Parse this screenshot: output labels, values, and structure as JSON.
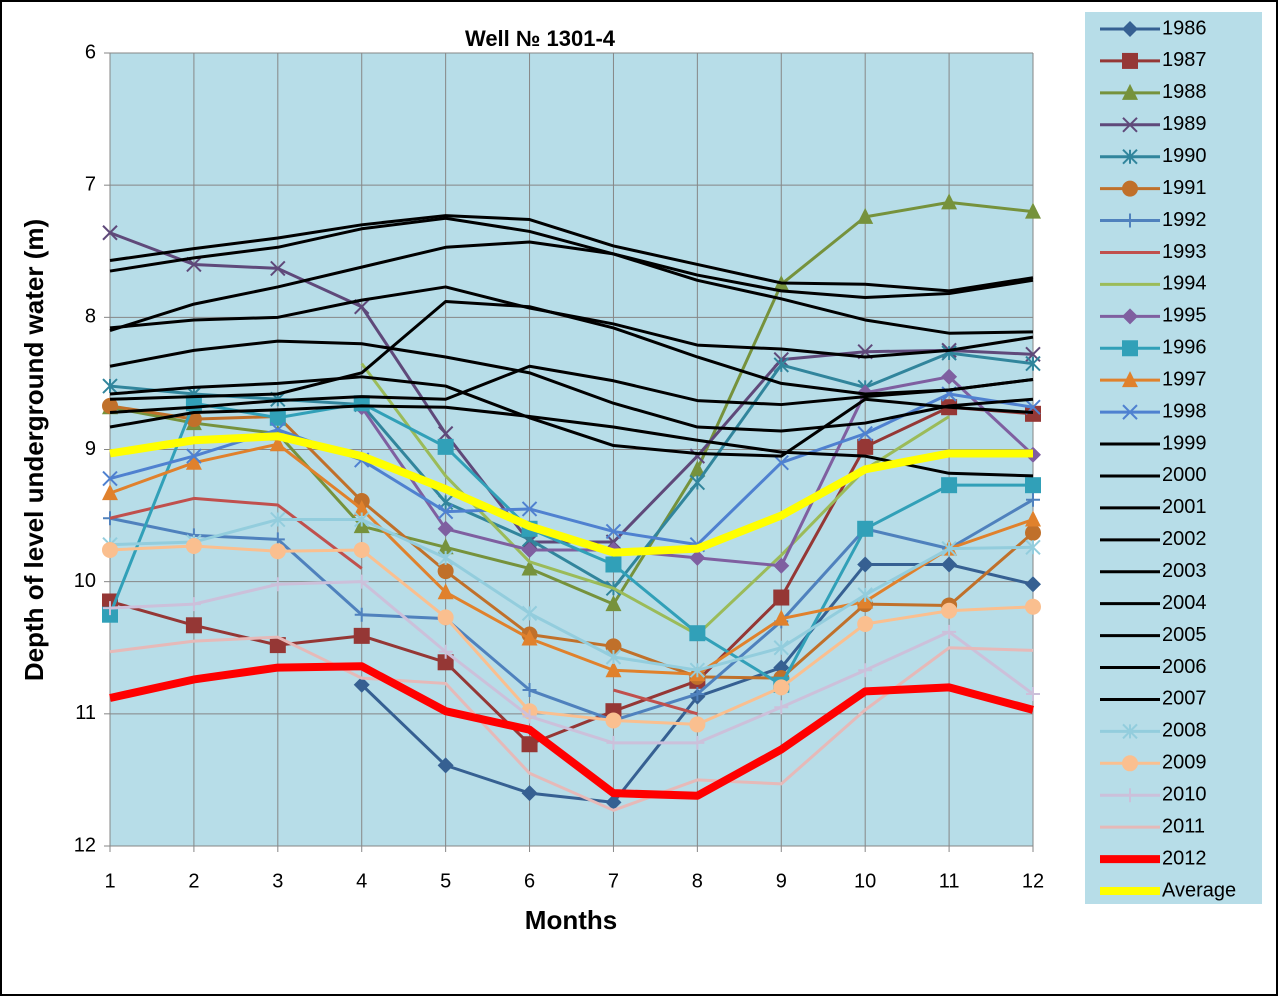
{
  "chart_data": {
    "type": "line",
    "title": "Well № 1301-4",
    "x_label": "Months",
    "y_label": "Depth  of level underground water (m)",
    "x": [
      1,
      2,
      3,
      4,
      5,
      6,
      7,
      8,
      9,
      10,
      11,
      12
    ],
    "xlim": [
      1,
      12
    ],
    "xticks": [
      1,
      2,
      3,
      4,
      5,
      6,
      7,
      8,
      9,
      10,
      11,
      12
    ],
    "ylim": [
      6,
      12
    ],
    "yticks": [
      6,
      7,
      8,
      9,
      10,
      11,
      12
    ],
    "y_inverted": true,
    "grid": true,
    "legend": "right",
    "plot_background": "#b7dde8",
    "series": [
      {
        "name": "1986",
        "color": "#366092",
        "marker": "diamond",
        "width": 3,
        "values": [
          null,
          null,
          null,
          10.78,
          11.39,
          11.6,
          11.67,
          10.87,
          10.65,
          9.87,
          9.87,
          10.02
        ]
      },
      {
        "name": "1987",
        "color": "#953735",
        "marker": "square",
        "width": 3,
        "values": [
          10.15,
          10.33,
          10.48,
          10.41,
          10.61,
          11.23,
          10.98,
          10.75,
          10.12,
          8.98,
          8.68,
          8.73
        ]
      },
      {
        "name": "1988",
        "color": "#76923c",
        "marker": "triangle",
        "width": 3,
        "values": [
          8.68,
          8.8,
          8.88,
          9.58,
          9.74,
          9.9,
          10.17,
          9.15,
          7.75,
          7.24,
          7.13,
          7.2
        ]
      },
      {
        "name": "1989",
        "color": "#5f497a",
        "marker": "x",
        "width": 3,
        "values": [
          7.36,
          7.6,
          7.63,
          7.92,
          8.88,
          9.7,
          9.7,
          9.05,
          8.32,
          8.26,
          8.25,
          8.28
        ]
      },
      {
        "name": "1990",
        "color": "#31859c",
        "marker": "asterisk",
        "width": 3,
        "values": [
          8.52,
          8.58,
          8.62,
          8.66,
          9.4,
          9.68,
          10.05,
          9.25,
          8.36,
          8.53,
          8.27,
          8.35
        ]
      },
      {
        "name": "1991",
        "color": "#c0702a",
        "marker": "circle",
        "width": 3,
        "values": [
          8.67,
          8.77,
          8.75,
          9.39,
          9.92,
          10.4,
          10.49,
          10.72,
          10.73,
          10.17,
          10.18,
          9.63
        ]
      },
      {
        "name": "1992",
        "color": "#4f81bd",
        "marker": "plus",
        "width": 3,
        "values": [
          9.52,
          9.65,
          9.68,
          10.25,
          10.28,
          10.82,
          11.05,
          10.85,
          10.3,
          9.6,
          9.75,
          9.38
        ]
      },
      {
        "name": "1993",
        "color": "#c0504d",
        "marker": "none",
        "width": 3,
        "values": [
          9.52,
          9.37,
          9.42,
          9.9,
          null,
          null,
          10.82,
          11.0,
          null,
          null,
          null,
          null
        ]
      },
      {
        "name": "1994",
        "color": "#9bbb59",
        "marker": "none",
        "width": 3,
        "values": [
          null,
          null,
          null,
          8.35,
          9.2,
          9.85,
          10.05,
          10.4,
          9.8,
          9.15,
          8.75,
          null
        ]
      },
      {
        "name": "1995",
        "color": "#7f5fa0",
        "marker": "diamond",
        "width": 3,
        "values": [
          null,
          null,
          null,
          8.68,
          9.6,
          9.76,
          9.76,
          9.82,
          9.88,
          8.57,
          8.45,
          9.04
        ]
      },
      {
        "name": "1996",
        "color": "#31a0b8",
        "marker": "square",
        "width": 3,
        "values": [
          10.25,
          8.65,
          8.76,
          8.65,
          8.98,
          9.6,
          9.87,
          10.39,
          10.78,
          9.6,
          9.27,
          9.27
        ]
      },
      {
        "name": "1997",
        "color": "#e0812c",
        "marker": "triangle",
        "width": 3,
        "values": [
          9.33,
          9.1,
          8.96,
          9.45,
          10.08,
          10.43,
          10.67,
          10.7,
          10.28,
          10.15,
          9.75,
          9.53
        ]
      },
      {
        "name": "1998",
        "color": "#4f81d0",
        "marker": "x",
        "width": 3,
        "values": [
          9.22,
          9.05,
          8.85,
          9.08,
          9.47,
          9.45,
          9.62,
          9.72,
          9.1,
          8.88,
          8.58,
          8.68
        ]
      },
      {
        "name": "1999",
        "color": "#000000",
        "marker": "none",
        "width": 3,
        "values": [
          7.57,
          7.48,
          7.4,
          7.3,
          7.23,
          7.26,
          7.46,
          7.6,
          7.74,
          7.75,
          7.8,
          7.7
        ]
      },
      {
        "name": "2000",
        "color": "#000000",
        "marker": "none",
        "width": 3,
        "values": [
          7.65,
          7.55,
          7.47,
          7.33,
          7.25,
          7.35,
          7.52,
          7.68,
          7.8,
          7.85,
          7.82,
          7.72
        ]
      },
      {
        "name": "2001",
        "color": "#000000",
        "marker": "none",
        "width": 3,
        "values": [
          8.1,
          7.9,
          7.77,
          7.62,
          7.47,
          7.43,
          7.52,
          7.72,
          7.86,
          8.02,
          8.12,
          8.11
        ]
      },
      {
        "name": "2002",
        "color": "#000000",
        "marker": "none",
        "width": 3,
        "values": [
          8.08,
          8.02,
          8.0,
          7.87,
          7.77,
          7.93,
          8.05,
          8.21,
          8.24,
          8.3,
          8.25,
          8.15
        ]
      },
      {
        "name": "2003",
        "color": "#000000",
        "marker": "none",
        "width": 3,
        "values": [
          8.37,
          8.25,
          8.18,
          8.2,
          8.3,
          8.42,
          8.65,
          8.83,
          8.86,
          8.8,
          8.67,
          8.62
        ]
      },
      {
        "name": "2004",
        "color": "#000000",
        "marker": "none",
        "width": 3,
        "values": [
          8.58,
          8.53,
          8.5,
          8.45,
          8.52,
          8.76,
          8.97,
          9.03,
          9.05,
          8.62,
          8.68,
          8.72
        ]
      },
      {
        "name": "2005",
        "color": "#000000",
        "marker": "none",
        "width": 3,
        "values": [
          8.62,
          8.6,
          8.58,
          8.42,
          7.88,
          7.92,
          8.08,
          8.3,
          8.5,
          8.58,
          8.55,
          8.47
        ]
      },
      {
        "name": "2006",
        "color": "#000000",
        "marker": "none",
        "width": 3,
        "values": [
          8.72,
          8.68,
          8.63,
          8.6,
          8.62,
          8.37,
          8.48,
          8.63,
          8.66,
          8.6,
          8.55,
          8.47
        ]
      },
      {
        "name": "2007",
        "color": "#000000",
        "marker": "none",
        "width": 3,
        "values": [
          8.83,
          8.72,
          8.7,
          8.67,
          8.68,
          8.75,
          8.83,
          8.93,
          9.02,
          9.05,
          9.18,
          9.2
        ]
      },
      {
        "name": "2008",
        "color": "#93cddd",
        "marker": "asterisk",
        "width": 3,
        "values": [
          9.72,
          9.7,
          9.53,
          9.53,
          9.82,
          10.24,
          10.57,
          10.67,
          10.5,
          10.1,
          9.75,
          9.74
        ]
      },
      {
        "name": "2009",
        "color": "#fabf8f",
        "marker": "circle",
        "width": 3,
        "values": [
          9.76,
          9.73,
          9.77,
          9.76,
          10.27,
          10.98,
          11.05,
          11.08,
          10.8,
          10.32,
          10.22,
          10.19
        ]
      },
      {
        "name": "2010",
        "color": "#ccc0da",
        "marker": "plus",
        "width": 3,
        "values": [
          10.2,
          10.17,
          10.02,
          10.0,
          10.53,
          11.02,
          11.22,
          11.22,
          10.95,
          10.67,
          10.38,
          10.85
        ]
      },
      {
        "name": "2011",
        "color": "#e6b9b8",
        "marker": "none",
        "width": 3,
        "values": [
          10.53,
          10.45,
          10.42,
          10.73,
          10.77,
          11.45,
          11.73,
          11.5,
          11.53,
          10.97,
          10.5,
          10.52
        ]
      },
      {
        "name": "2012",
        "color": "#ff0000",
        "marker": "none",
        "width": 8,
        "values": [
          10.88,
          10.74,
          10.65,
          10.64,
          10.98,
          11.12,
          11.6,
          11.62,
          11.27,
          10.83,
          10.8,
          10.97
        ]
      },
      {
        "name": "Average",
        "color": "#ffff00",
        "marker": "none",
        "width": 8,
        "values": [
          9.03,
          8.93,
          8.9,
          9.05,
          9.3,
          9.58,
          9.78,
          9.75,
          9.5,
          9.15,
          9.03,
          9.03
        ]
      }
    ]
  }
}
